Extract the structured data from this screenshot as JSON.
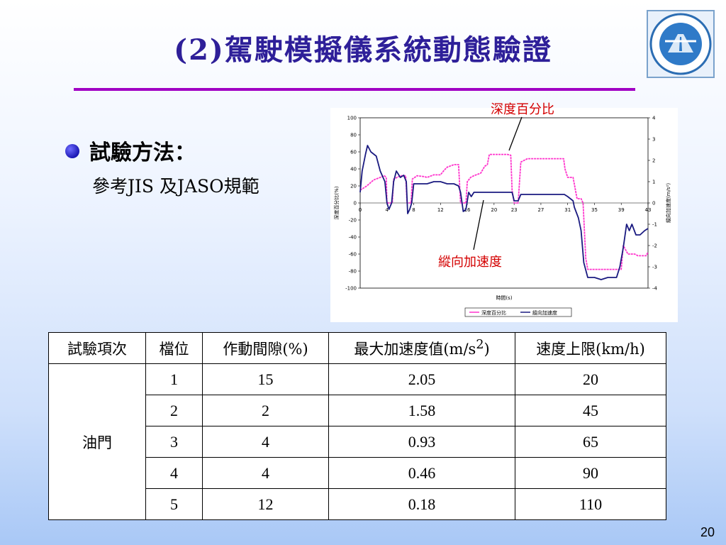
{
  "slide": {
    "title": "(2)駕駛模擬儀系統動態驗證",
    "page_number": "20"
  },
  "bullet": {
    "heading": "試驗方法：",
    "sub": "參考JIS 及JASO規範"
  },
  "annotations": {
    "depth": "深度百分比",
    "accel": "縱向加速度"
  },
  "colors": {
    "title": "#2e1f99",
    "rule": "#a100c4",
    "depth_series": "#ff33cc",
    "accel_series": "#1a1a80",
    "annotation": "#d40000"
  },
  "chart_data": {
    "type": "line",
    "xlabel": "時間(s)",
    "ylabel_left": "深度百分比(%)",
    "ylabel_right": "縱向加速度(m/s²)",
    "x_ticks": [
      0,
      4,
      8,
      12,
      16,
      20,
      23,
      27,
      31,
      35,
      39,
      43
    ],
    "xlim": [
      0,
      43
    ],
    "ylim_left": [
      -100,
      100
    ],
    "ylim_right": [
      -4,
      4
    ],
    "y_ticks_left": [
      100,
      80,
      60,
      40,
      20,
      0,
      -20,
      -40,
      -60,
      -80,
      -100
    ],
    "y_ticks_right": [
      4,
      3,
      2,
      1,
      0,
      -1,
      -2,
      -3,
      -4
    ],
    "legend": [
      "深度百分比",
      "縱向加速度"
    ],
    "legend_position": "bottom-right",
    "series": [
      {
        "name": "深度百分比",
        "axis": "left",
        "color": "#ff33cc",
        "points": [
          [
            0,
            15
          ],
          [
            1,
            20
          ],
          [
            2,
            27
          ],
          [
            3,
            30
          ],
          [
            3.6,
            32
          ],
          [
            3.9,
            30
          ],
          [
            4,
            0
          ],
          [
            4.8,
            0
          ],
          [
            5,
            28
          ],
          [
            6,
            32
          ],
          [
            6.8,
            32
          ],
          [
            7,
            0
          ],
          [
            7.6,
            0
          ],
          [
            7.8,
            28
          ],
          [
            8.5,
            32
          ],
          [
            9.5,
            31
          ],
          [
            10,
            30
          ],
          [
            11,
            33
          ],
          [
            12,
            33
          ],
          [
            12.5,
            38
          ],
          [
            13,
            42
          ],
          [
            14,
            45
          ],
          [
            14.7,
            45
          ],
          [
            15,
            0
          ],
          [
            15.8,
            0
          ],
          [
            16,
            25
          ],
          [
            16.5,
            30
          ],
          [
            17,
            32
          ],
          [
            18,
            35
          ],
          [
            18.6,
            43
          ],
          [
            19,
            45
          ],
          [
            19.3,
            57
          ],
          [
            22,
            57
          ],
          [
            22.5,
            56
          ],
          [
            22.7,
            15
          ],
          [
            23,
            0
          ],
          [
            23.6,
            0
          ],
          [
            24,
            48
          ],
          [
            25,
            52
          ],
          [
            27,
            52
          ],
          [
            29,
            52
          ],
          [
            30.4,
            52
          ],
          [
            30.6,
            40
          ],
          [
            31,
            30
          ],
          [
            31.8,
            30
          ],
          [
            32,
            22
          ],
          [
            32.4,
            5
          ],
          [
            33,
            5
          ],
          [
            33.3,
            0
          ],
          [
            33.7,
            -65
          ],
          [
            34,
            -78
          ],
          [
            36,
            -78
          ],
          [
            38.5,
            -78
          ],
          [
            39,
            -78
          ],
          [
            39.3,
            -50
          ],
          [
            40,
            -60
          ],
          [
            41,
            -60
          ],
          [
            41.5,
            -62
          ],
          [
            42.7,
            -62
          ],
          [
            43,
            -58
          ]
        ]
      },
      {
        "name": "縱向加速度",
        "axis": "right",
        "color": "#1a1a80",
        "points": [
          [
            0,
            0.5
          ],
          [
            0.3,
            1.5
          ],
          [
            0.8,
            2.3
          ],
          [
            1.1,
            2.7
          ],
          [
            1.6,
            2.4
          ],
          [
            2,
            2.3
          ],
          [
            2.4,
            2.2
          ],
          [
            3,
            1.5
          ],
          [
            3.7,
            1.0
          ],
          [
            4,
            0
          ],
          [
            4.3,
            -0.3
          ],
          [
            4.7,
            0
          ],
          [
            5,
            1.0
          ],
          [
            5.4,
            1.5
          ],
          [
            6,
            1.2
          ],
          [
            6.5,
            1.3
          ],
          [
            6.9,
            1.0
          ],
          [
            7.1,
            -0.5
          ],
          [
            7.4,
            -0.3
          ],
          [
            7.7,
            0
          ],
          [
            8,
            0.9
          ],
          [
            8.5,
            0.9
          ],
          [
            10,
            0.9
          ],
          [
            11,
            1.0
          ],
          [
            12,
            1.0
          ],
          [
            13,
            0.9
          ],
          [
            14,
            0.9
          ],
          [
            14.7,
            0.8
          ],
          [
            15,
            0.5
          ],
          [
            15.4,
            -0.4
          ],
          [
            15.8,
            -0.3
          ],
          [
            16.2,
            0.5
          ],
          [
            16.6,
            0.3
          ],
          [
            17,
            0.5
          ],
          [
            18,
            0.5
          ],
          [
            19.5,
            0.5
          ],
          [
            21,
            0.5
          ],
          [
            22.7,
            0.5
          ],
          [
            23,
            0.1
          ],
          [
            23.6,
            0.1
          ],
          [
            24,
            0.4
          ],
          [
            25,
            0.4
          ],
          [
            28,
            0.4
          ],
          [
            30.5,
            0.4
          ],
          [
            31,
            0.3
          ],
          [
            31.8,
            0.1
          ],
          [
            32,
            -0.2
          ],
          [
            32.6,
            -0.7
          ],
          [
            33,
            -1.3
          ],
          [
            33.4,
            -2.8
          ],
          [
            34,
            -3.5
          ],
          [
            35,
            -3.5
          ],
          [
            36,
            -3.6
          ],
          [
            37,
            -3.5
          ],
          [
            38.3,
            -3.5
          ],
          [
            38.8,
            -3.0
          ],
          [
            39.3,
            -2.1
          ],
          [
            39.8,
            -1.0
          ],
          [
            40.2,
            -1.3
          ],
          [
            40.6,
            -1.0
          ],
          [
            41.2,
            -1.5
          ],
          [
            41.8,
            -1.5
          ],
          [
            42.5,
            -1.3
          ],
          [
            43,
            -1.2
          ]
        ]
      }
    ]
  },
  "table": {
    "headers": [
      "試驗項次",
      "檔位",
      "作動間隙(%)",
      "最大加速度值(m/s",
      "速度上限(km/h)"
    ],
    "header_sup": "2",
    "header_close": ")",
    "group_label": "油門",
    "rows": [
      [
        "1",
        "15",
        "2.05",
        "20"
      ],
      [
        "2",
        "2",
        "1.58",
        "45"
      ],
      [
        "3",
        "4",
        "0.93",
        "65"
      ],
      [
        "4",
        "4",
        "0.46",
        "90"
      ],
      [
        "5",
        "12",
        "0.18",
        "110"
      ]
    ]
  }
}
